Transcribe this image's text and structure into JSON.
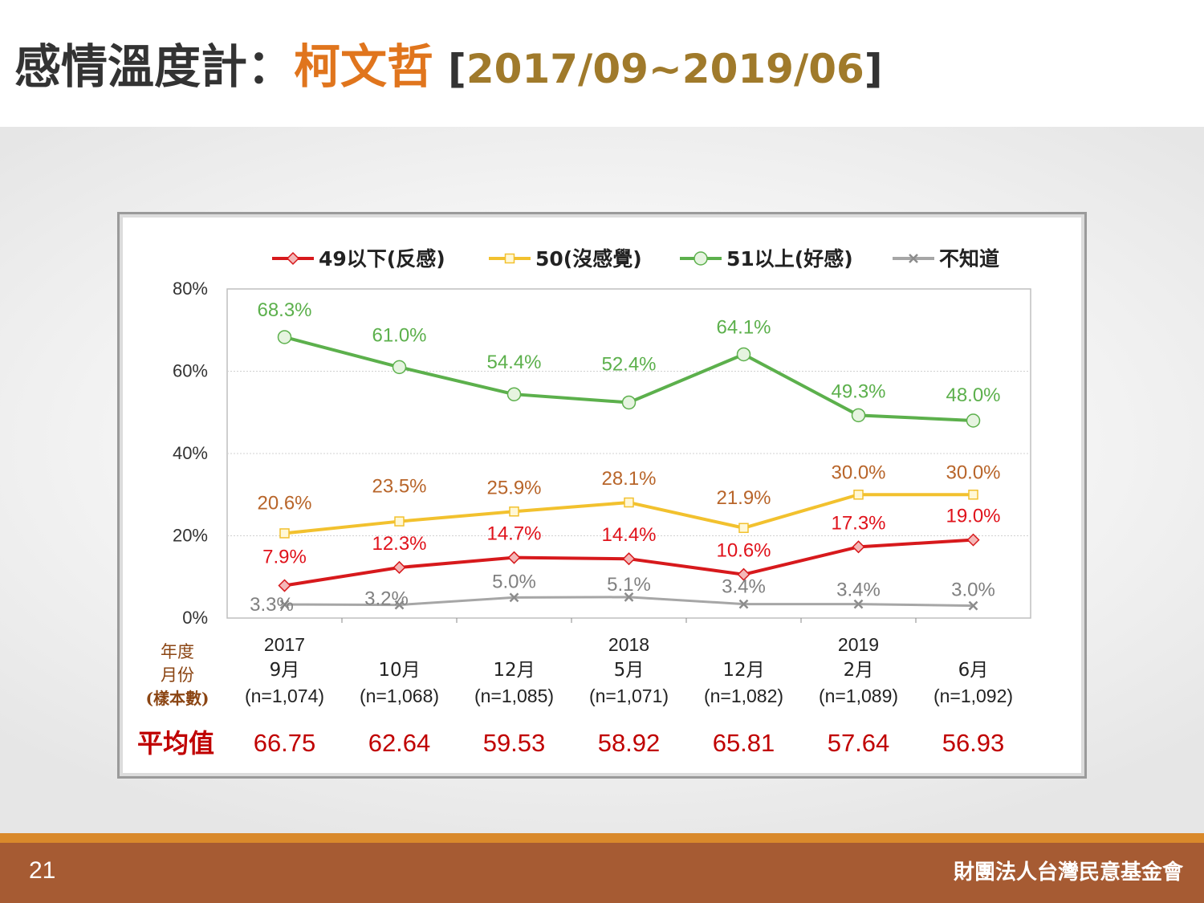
{
  "title": {
    "main": "感情溫度計：",
    "name": "柯文哲",
    "range": "2017/09~2019/06",
    "bracket_open": "[",
    "bracket_close": "]"
  },
  "footer": {
    "page_number": "21",
    "organization": "財團法人台灣民意基金會"
  },
  "colors": {
    "red": "#d7191c",
    "yellow": "#f2c12e",
    "green": "#5cb04c",
    "gray": "#a6a6a6",
    "title_accent": "#e0751d",
    "footer_bg": "#a65b33",
    "avg_text": "#c00000",
    "axis_brown": "#8b4513"
  },
  "chart_data": {
    "type": "line",
    "ylim": [
      0,
      80
    ],
    "yticks": [
      "0%",
      "20%",
      "40%",
      "60%",
      "80%"
    ],
    "categories": [
      {
        "year": "2017",
        "month": "9月",
        "n": "(n=1,074)",
        "avg": "66.75"
      },
      {
        "year": "",
        "month": "10月",
        "n": "(n=1,068)",
        "avg": "62.64"
      },
      {
        "year": "",
        "month": "12月",
        "n": "(n=1,085)",
        "avg": "59.53"
      },
      {
        "year": "2018",
        "month": "5月",
        "n": "(n=1,071)",
        "avg": "58.92"
      },
      {
        "year": "",
        "month": "12月",
        "n": "(n=1,082)",
        "avg": "65.81"
      },
      {
        "year": "2019",
        "month": "2月",
        "n": "(n=1,089)",
        "avg": "57.64"
      },
      {
        "year": "",
        "month": "6月",
        "n": "(n=1,092)",
        "avg": "56.93"
      }
    ],
    "row_labels": {
      "year": "年度",
      "month": "月份",
      "sample": "(樣本數)",
      "average": "平均值"
    },
    "series": [
      {
        "name": "49以下(反感)",
        "color": "#d7191c",
        "label_color": "#e0121b",
        "marker": "diamond",
        "values": [
          7.9,
          12.3,
          14.7,
          14.4,
          10.6,
          17.3,
          19.0
        ],
        "labels": [
          "7.9%",
          "12.3%",
          "14.7%",
          "14.4%",
          "10.6%",
          "17.3%",
          "19.0%"
        ]
      },
      {
        "name": "50(沒感覺)",
        "color": "#f2c12e",
        "label_color": "#b8652a",
        "marker": "square",
        "values": [
          20.6,
          23.5,
          25.9,
          28.1,
          21.9,
          30.0,
          30.0
        ],
        "labels": [
          "20.6%",
          "23.5%",
          "25.9%",
          "28.1%",
          "21.9%",
          "30.0%",
          "30.0%"
        ]
      },
      {
        "name": "51以上(好感)",
        "color": "#5cb04c",
        "label_color": "#5cb04c",
        "marker": "circle",
        "values": [
          68.3,
          61.0,
          54.4,
          52.4,
          64.1,
          49.3,
          48.0
        ],
        "labels": [
          "68.3%",
          "61.0%",
          "54.4%",
          "52.4%",
          "64.1%",
          "49.3%",
          "48.0%"
        ]
      },
      {
        "name": "不知道",
        "color": "#a6a6a6",
        "label_color": "#808080",
        "marker": "x",
        "values": [
          3.3,
          3.2,
          5.0,
          5.1,
          3.4,
          3.4,
          3.0
        ],
        "labels": [
          "3.3%",
          "3.2%",
          "5.0%",
          "5.1%",
          "3.4%",
          "3.4%",
          "3.0%"
        ]
      }
    ],
    "grid": true,
    "legend": "top"
  }
}
